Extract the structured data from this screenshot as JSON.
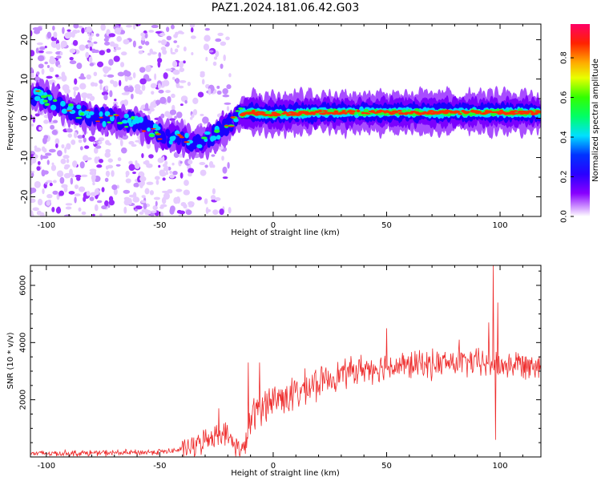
{
  "title": "PAZ1.2024.181.06.42.G03",
  "chart_data": [
    {
      "type": "heatmap",
      "xlabel": "Height of straight line (km)",
      "ylabel": "Frequency (Hz)",
      "xlim": [
        -107,
        118
      ],
      "ylim": [
        -25,
        24
      ],
      "xticks": [
        -100,
        -50,
        0,
        50,
        100
      ],
      "yticks": [
        -20,
        -10,
        0,
        10,
        20
      ],
      "colorbar": {
        "label": "Normalized spectral amplitude",
        "range": [
          0,
          0.97
        ],
        "ticks": [
          0.0,
          0.2,
          0.4,
          0.6,
          0.8
        ],
        "colormap": "gist_rainbow_r",
        "low_color": "#ffffff"
      },
      "ridge": [
        {
          "x": -105,
          "y": 6
        },
        {
          "x": -90,
          "y": 2
        },
        {
          "x": -75,
          "y": 0
        },
        {
          "x": -60,
          "y": -1
        },
        {
          "x": -50,
          "y": -4
        },
        {
          "x": -42,
          "y": -5
        },
        {
          "x": -35,
          "y": -6
        },
        {
          "x": -28,
          "y": -5
        },
        {
          "x": -22,
          "y": -3
        },
        {
          "x": -15,
          "y": 1
        },
        {
          "x": -10,
          "y": 1.5
        },
        {
          "x": 0,
          "y": 1
        },
        {
          "x": 20,
          "y": 1.5
        },
        {
          "x": 50,
          "y": 1.5
        },
        {
          "x": 100,
          "y": 1.5
        },
        {
          "x": 118,
          "y": 1.5
        }
      ]
    },
    {
      "type": "line",
      "xlabel": "Height of straight line (km)",
      "ylabel": "SNR (10 * v/v)",
      "xlim": [
        -107,
        118
      ],
      "ylim": [
        0,
        6700
      ],
      "xticks": [
        -100,
        -50,
        0,
        50,
        100
      ],
      "yticks": [
        2000,
        4000,
        6000
      ],
      "color": "#ee2b2b",
      "trend": [
        {
          "x": -107,
          "y": 120
        },
        {
          "x": -60,
          "y": 150
        },
        {
          "x": -45,
          "y": 200
        },
        {
          "x": -35,
          "y": 350
        },
        {
          "x": -28,
          "y": 700
        },
        {
          "x": -22,
          "y": 900
        },
        {
          "x": -18,
          "y": 500
        },
        {
          "x": -13,
          "y": 200
        },
        {
          "x": -10,
          "y": 1300
        },
        {
          "x": -5,
          "y": 1800
        },
        {
          "x": 0,
          "y": 2000
        },
        {
          "x": 10,
          "y": 2200
        },
        {
          "x": 20,
          "y": 2600
        },
        {
          "x": 30,
          "y": 2900
        },
        {
          "x": 40,
          "y": 3100
        },
        {
          "x": 60,
          "y": 3200
        },
        {
          "x": 80,
          "y": 3300
        },
        {
          "x": 90,
          "y": 3300
        },
        {
          "x": 100,
          "y": 3200
        },
        {
          "x": 118,
          "y": 3300
        }
      ],
      "peaks": [
        {
          "x": -24,
          "y": 1700
        },
        {
          "x": -11,
          "y": 3300
        },
        {
          "x": -6,
          "y": 3300
        },
        {
          "x": 50,
          "y": 4500
        },
        {
          "x": 82,
          "y": 4100
        },
        {
          "x": 95,
          "y": 4700
        },
        {
          "x": 97,
          "y": 6700
        },
        {
          "x": 99,
          "y": 5400
        },
        {
          "x": 98,
          "y": 600
        }
      ]
    }
  ]
}
